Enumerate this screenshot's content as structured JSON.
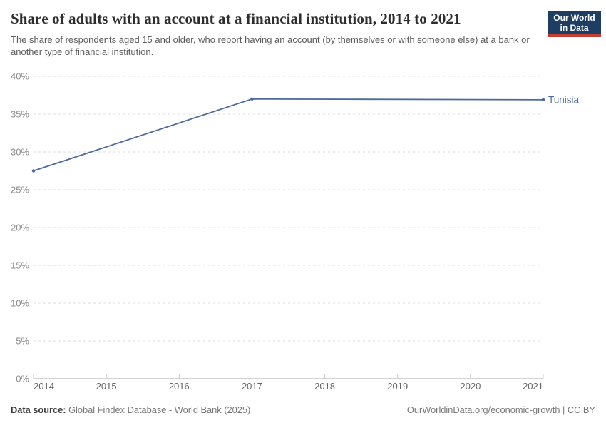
{
  "header": {
    "title": "Share of adults with an account at a financial institution, 2014 to 2021",
    "subtitle": "The share of respondents aged 15 and older, who report having an account (by themselves or with someone else) at a bank or another type of financial institution.",
    "logo": {
      "line1": "Our World",
      "line2": "in Data"
    }
  },
  "chart_data": {
    "type": "line",
    "title": "Share of adults with an account at a financial institution, 2014 to 2021",
    "xlabel": "",
    "ylabel": "",
    "xlim": [
      2014,
      2021
    ],
    "ylim": [
      0,
      40
    ],
    "x_ticks": [
      2014,
      2015,
      2016,
      2017,
      2018,
      2019,
      2020,
      2021
    ],
    "y_ticks": [
      0,
      5,
      10,
      15,
      20,
      25,
      30,
      35,
      40
    ],
    "y_tick_suffix": "%",
    "grid": "horizontal-dashed",
    "legend": "entity-label-at-line-end",
    "series": [
      {
        "name": "Tunisia",
        "color": "#4C6A9C",
        "points": [
          {
            "year": 2014,
            "value": 27.5
          },
          {
            "year": 2017,
            "value": 37.0
          },
          {
            "year": 2021,
            "value": 36.9
          }
        ]
      }
    ]
  },
  "footer": {
    "source_label": "Data source:",
    "source_text": "Global Findex Database - World Bank (2025)",
    "link_text": "OurWorldinData.org/economic-growth | CC BY"
  },
  "colors": {
    "accent_line": "#4C6A9C",
    "logo_bg": "#1d3d63",
    "logo_stripe": "#c43d32",
    "grid": "#dcdcdc",
    "axis": "#a8a8a8",
    "tick": "#c9c9c9",
    "y_label": "#8c8c8c",
    "x_label": "#666666",
    "title": "#2d2d2d",
    "subtitle": "#5b5b5b",
    "footer": "#777777"
  }
}
